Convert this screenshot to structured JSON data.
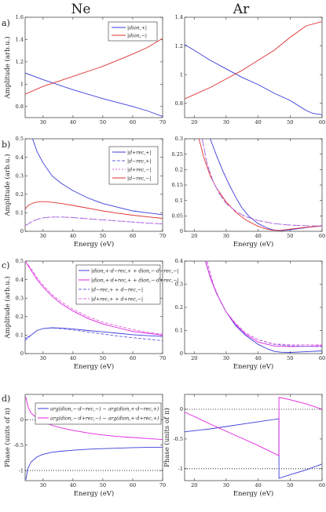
{
  "column_titles": [
    "Ne",
    "Ar"
  ],
  "panel_labels": [
    "a)",
    "b)",
    "c)",
    "d)"
  ],
  "colors": {
    "blue": "#3b3bdc",
    "red": "#e03030",
    "magenta": "#e020e0",
    "dashed_blue": "#6060e0",
    "dashed_magenta": "#e060e0"
  },
  "chart_data": [
    {
      "id": "a-ne",
      "type": "line",
      "xlabel": "",
      "ylabel": "Amplitude (arb.u.)",
      "xlim": [
        24,
        70
      ],
      "ylim": [
        0.7,
        1.6
      ],
      "xticks": [
        30,
        40,
        50,
        60,
        70
      ],
      "yticks": [
        0.8,
        1,
        1.2,
        1.4,
        1.6
      ],
      "ytick_labels": [
        "0.8",
        "1",
        "1.2",
        "1.4",
        "1.6"
      ],
      "legend": "top-right",
      "series": [
        {
          "name": "|dion,+|",
          "color": "#3b3bdc",
          "dash": "",
          "x": [
            24,
            30,
            40,
            50,
            60,
            65,
            70
          ],
          "y": [
            1.1,
            1.04,
            0.95,
            0.87,
            0.8,
            0.76,
            0.71
          ]
        },
        {
          "name": "|dion,−|",
          "color": "#e03030",
          "dash": "",
          "x": [
            24,
            30,
            40,
            50,
            60,
            65,
            70
          ],
          "y": [
            0.91,
            0.98,
            1.07,
            1.16,
            1.27,
            1.33,
            1.41
          ]
        }
      ]
    },
    {
      "id": "a-ar",
      "type": "line",
      "xlabel": "",
      "ylabel": "",
      "xlim": [
        17,
        60
      ],
      "ylim": [
        0.7,
        1.4
      ],
      "xticks": [
        20,
        30,
        40,
        50,
        60
      ],
      "yticks": [
        0.8,
        1,
        1.2,
        1.4
      ],
      "ytick_labels": [
        "0.8",
        "1",
        "1.2",
        "1.4"
      ],
      "series": [
        {
          "name": "",
          "color": "#3b3bdc",
          "dash": "",
          "x": [
            17,
            20,
            25,
            30,
            35,
            40,
            45,
            50,
            55,
            57,
            60
          ],
          "y": [
            1.21,
            1.17,
            1.1,
            1.04,
            0.98,
            0.93,
            0.87,
            0.82,
            0.75,
            0.73,
            0.72
          ]
        },
        {
          "name": "",
          "color": "#e03030",
          "dash": "",
          "x": [
            17,
            20,
            25,
            30,
            35,
            40,
            45,
            50,
            55,
            60
          ],
          "y": [
            0.83,
            0.86,
            0.91,
            0.97,
            1.03,
            1.1,
            1.17,
            1.26,
            1.34,
            1.37
          ]
        }
      ]
    },
    {
      "id": "b-ne",
      "type": "line",
      "xlabel": "Energy (eV)",
      "ylabel": "Amplitude (arb.u.)",
      "xlim": [
        24,
        70
      ],
      "ylim": [
        0,
        0.5
      ],
      "xticks": [
        30,
        40,
        50,
        60,
        70
      ],
      "yticks": [
        0,
        0.1,
        0.2,
        0.3,
        0.4,
        0.5
      ],
      "ytick_labels": [
        "0",
        "0.1",
        "0.2",
        "0.3",
        "0.4",
        "0.5"
      ],
      "legend": "top-right",
      "series": [
        {
          "name": "|d+rec,+|",
          "color": "#3b3bdc",
          "dash": "",
          "x": [
            26.5,
            28,
            30,
            33,
            36,
            40,
            45,
            50,
            55,
            60,
            65,
            70
          ],
          "y": [
            0.5,
            0.43,
            0.37,
            0.3,
            0.26,
            0.22,
            0.18,
            0.15,
            0.13,
            0.11,
            0.1,
            0.09
          ]
        },
        {
          "name": "|d−rec,+|",
          "color": "#6060e0",
          "dash": "4,2",
          "x": [
            24,
            26,
            28,
            30,
            33,
            36,
            40,
            45,
            50,
            55,
            60,
            65,
            70
          ],
          "y": [
            0.03,
            0.05,
            0.065,
            0.073,
            0.077,
            0.077,
            0.074,
            0.068,
            0.062,
            0.056,
            0.05,
            0.044,
            0.04
          ]
        },
        {
          "name": "|d+rec,−|",
          "color": "#e060e0",
          "dash": "2,2",
          "x": [
            24,
            26,
            28,
            30,
            33,
            36,
            40,
            45,
            50,
            55,
            60,
            65,
            70
          ],
          "y": [
            0.03,
            0.05,
            0.065,
            0.073,
            0.077,
            0.077,
            0.074,
            0.068,
            0.062,
            0.056,
            0.05,
            0.044,
            0.04
          ]
        },
        {
          "name": "|d−rec,−|",
          "color": "#e03030",
          "dash": "",
          "x": [
            24,
            25,
            27,
            29,
            31,
            34,
            37,
            40,
            45,
            50,
            55,
            60,
            65,
            70
          ],
          "y": [
            0.12,
            0.14,
            0.155,
            0.16,
            0.16,
            0.155,
            0.148,
            0.14,
            0.125,
            0.11,
            0.098,
            0.087,
            0.078,
            0.07
          ]
        }
      ]
    },
    {
      "id": "b-ar",
      "type": "line",
      "xlabel": "Energy (eV)",
      "ylabel": "",
      "xlim": [
        17,
        60
      ],
      "ylim": [
        0,
        0.3
      ],
      "xticks": [
        20,
        30,
        40,
        50,
        60
      ],
      "yticks": [
        0,
        0.05,
        0.1,
        0.15,
        0.2,
        0.25,
        0.3
      ],
      "ytick_labels": [
        "0",
        "0.05",
        "0.1",
        "0.15",
        "0.2",
        "0.25",
        "0.3"
      ],
      "series": [
        {
          "name": "",
          "color": "#3b3bdc",
          "dash": "",
          "x": [
            25,
            27,
            29,
            31,
            33,
            35,
            37,
            40,
            43,
            45,
            47,
            50,
            55,
            60
          ],
          "y": [
            0.3,
            0.245,
            0.195,
            0.15,
            0.11,
            0.075,
            0.05,
            0.025,
            0.01,
            0.004,
            0.002,
            0.005,
            0.012,
            0.018
          ]
        },
        {
          "name": "",
          "color": "#e03030",
          "dash": "",
          "x": [
            21.5,
            23,
            25,
            27,
            30,
            33,
            36,
            40,
            43,
            45,
            47,
            50,
            55,
            60
          ],
          "y": [
            0.3,
            0.24,
            0.18,
            0.14,
            0.095,
            0.062,
            0.038,
            0.016,
            0.006,
            0.003,
            0.003,
            0.007,
            0.013,
            0.017
          ]
        },
        {
          "name": "",
          "color": "#6060e0",
          "dash": "4,2",
          "x": [
            22.5,
            24,
            26,
            28,
            30,
            33,
            36,
            40,
            45,
            50,
            55,
            60
          ],
          "y": [
            0.3,
            0.22,
            0.16,
            0.12,
            0.09,
            0.065,
            0.048,
            0.035,
            0.025,
            0.02,
            0.018,
            0.017
          ]
        },
        {
          "name": "",
          "color": "#e060e0",
          "dash": "2,2",
          "x": [
            22.5,
            24,
            26,
            28,
            30,
            33,
            36,
            40,
            45,
            50,
            55,
            60
          ],
          "y": [
            0.3,
            0.22,
            0.16,
            0.12,
            0.09,
            0.065,
            0.048,
            0.035,
            0.025,
            0.02,
            0.018,
            0.017
          ]
        }
      ]
    },
    {
      "id": "c-ne",
      "type": "line",
      "xlabel": "Energy (eV)",
      "ylabel": "Amplitude (arb.u.)",
      "xlim": [
        24,
        70
      ],
      "ylim": [
        0,
        0.5
      ],
      "xticks": [
        30,
        40,
        50,
        60,
        70
      ],
      "yticks": [
        0,
        0.1,
        0.2,
        0.3,
        0.4,
        0.5
      ],
      "ytick_labels": [
        "0",
        "0.1",
        "0.2",
        "0.3",
        "0.4",
        "0.5"
      ],
      "legend": "top-right",
      "series": [
        {
          "name": "|dion,+·d−rec,+ + dion,−·d−rec,−|",
          "color": "#3b3bdc",
          "dash": "",
          "x": [
            24,
            26,
            28,
            30,
            33,
            36,
            40,
            45,
            50,
            55,
            60,
            65,
            70
          ],
          "y": [
            0.08,
            0.1,
            0.125,
            0.135,
            0.14,
            0.138,
            0.133,
            0.125,
            0.118,
            0.11,
            0.102,
            0.097,
            0.093
          ]
        },
        {
          "name": "|dion,+·d+rec,+ + dion,−·d+rec,−|",
          "color": "#e020e0",
          "dash": "",
          "x": [
            24,
            26,
            28,
            30,
            33,
            36,
            40,
            45,
            50,
            55,
            60,
            65,
            70
          ],
          "y": [
            0.5,
            0.45,
            0.4,
            0.36,
            0.31,
            0.27,
            0.23,
            0.19,
            0.16,
            0.14,
            0.12,
            0.11,
            0.1
          ]
        },
        {
          "name": "|d−rec,+ + d−rec,−|",
          "color": "#6060e0",
          "dash": "4,2",
          "x": [
            24,
            26,
            28,
            30,
            33,
            36,
            40,
            45,
            50,
            55,
            60,
            65,
            70
          ],
          "y": [
            0.07,
            0.1,
            0.125,
            0.135,
            0.138,
            0.135,
            0.128,
            0.117,
            0.106,
            0.095,
            0.086,
            0.078,
            0.07
          ]
        },
        {
          "name": "|d+rec,+ + d+rec,−|",
          "color": "#e060e0",
          "dash": "4,2",
          "x": [
            24,
            26,
            28,
            30,
            33,
            36,
            40,
            45,
            50,
            55,
            60,
            65,
            70
          ],
          "y": [
            0.5,
            0.46,
            0.41,
            0.37,
            0.32,
            0.28,
            0.24,
            0.2,
            0.17,
            0.15,
            0.13,
            0.115,
            0.105
          ]
        }
      ]
    },
    {
      "id": "c-ar",
      "type": "line",
      "xlabel": "Energy (eV)",
      "ylabel": "",
      "xlim": [
        17,
        60
      ],
      "ylim": [
        0,
        0.4
      ],
      "xticks": [
        20,
        30,
        40,
        50,
        60
      ],
      "yticks": [
        0,
        0.1,
        0.2,
        0.3,
        0.4
      ],
      "ytick_labels": [
        "0",
        "0.1",
        "0.2",
        "0.3",
        "0.4"
      ],
      "series": [
        {
          "name": "",
          "color": "#3b3bdc",
          "dash": "",
          "x": [
            23.5,
            25,
            27,
            30,
            33,
            36,
            40,
            43,
            45,
            47,
            50,
            55,
            60
          ],
          "y": [
            0.4,
            0.33,
            0.26,
            0.18,
            0.12,
            0.08,
            0.04,
            0.02,
            0.01,
            0.006,
            0.005,
            0.008,
            0.012
          ]
        },
        {
          "name": "",
          "color": "#e020e0",
          "dash": "",
          "x": [
            23.5,
            25,
            27,
            30,
            33,
            36,
            40,
            45,
            50,
            55,
            60
          ],
          "y": [
            0.4,
            0.33,
            0.26,
            0.18,
            0.125,
            0.085,
            0.05,
            0.033,
            0.03,
            0.032,
            0.034
          ]
        },
        {
          "name": "",
          "color": "#6060e0",
          "dash": "4,2",
          "x": [
            24,
            26,
            28,
            30,
            33,
            36,
            40,
            45,
            50,
            55,
            60
          ],
          "y": [
            0.4,
            0.3,
            0.23,
            0.18,
            0.13,
            0.09,
            0.06,
            0.04,
            0.034,
            0.032,
            0.03
          ]
        },
        {
          "name": "",
          "color": "#e060e0",
          "dash": "4,2",
          "x": [
            24,
            26,
            28,
            30,
            33,
            36,
            40,
            45,
            50,
            55,
            60
          ],
          "y": [
            0.4,
            0.3,
            0.23,
            0.18,
            0.13,
            0.09,
            0.06,
            0.042,
            0.038,
            0.038,
            0.038
          ]
        }
      ]
    },
    {
      "id": "d-ne",
      "type": "line",
      "xlabel": "Energy (eV)",
      "ylabel": "Phase (units of π)",
      "xlim": [
        24,
        70
      ],
      "ylim": [
        -1.2,
        0.5
      ],
      "xticks": [
        30,
        40,
        50,
        60,
        70
      ],
      "yticks": [
        -1,
        -0.5,
        0
      ],
      "ytick_labels": [
        "-1",
        "-0.5",
        "0"
      ],
      "hlines": [
        0,
        -1
      ],
      "legend": "top-right",
      "series": [
        {
          "name": "arg(dion,−·d−rec,−) − arg(dion,+·d−rec,+)",
          "color": "#3b3bdc",
          "dash": "",
          "x": [
            24.2,
            25,
            26,
            28,
            30,
            33,
            36,
            40,
            45,
            50,
            55,
            60,
            65,
            70
          ],
          "y": [
            -1.18,
            -0.95,
            -0.83,
            -0.73,
            -0.68,
            -0.64,
            -0.62,
            -0.6,
            -0.58,
            -0.57,
            -0.56,
            -0.55,
            -0.545,
            -0.54
          ]
        },
        {
          "name": "arg(dion,−·d+rec,−) − arg(dion,+·d+rec,+)",
          "color": "#e020e0",
          "dash": "",
          "x": [
            24.2,
            25,
            26,
            28,
            30,
            33,
            36,
            40,
            45,
            50,
            55,
            60,
            65,
            70
          ],
          "y": [
            0.45,
            0.25,
            0.13,
            0.03,
            -0.04,
            -0.11,
            -0.16,
            -0.21,
            -0.26,
            -0.3,
            -0.33,
            -0.35,
            -0.37,
            -0.39
          ]
        }
      ]
    },
    {
      "id": "d-ar",
      "type": "line",
      "xlabel": "Energy (eV)",
      "ylabel": "Phase (units of π)",
      "xlim": [
        17,
        60
      ],
      "ylim": [
        -1.2,
        0.25
      ],
      "xticks": [
        20,
        30,
        40,
        50,
        60
      ],
      "yticks": [
        -1,
        -0.5,
        0
      ],
      "ytick_labels": [
        "-1",
        "-0.5",
        "0"
      ],
      "hlines": [
        0,
        -1
      ],
      "series": [
        {
          "name": "",
          "color": "#3b3bdc",
          "dash": "",
          "x": [
            17,
            20,
            25,
            30,
            35,
            40,
            46.5,
            46.5,
            50,
            55,
            60
          ],
          "y": [
            -0.38,
            -0.36,
            -0.33,
            -0.29,
            -0.25,
            -0.21,
            -0.16,
            -1.16,
            -1.1,
            -1.02,
            -0.92
          ]
        },
        {
          "name": "",
          "color": "#e020e0",
          "dash": "",
          "x": [
            17,
            20,
            25,
            30,
            35,
            40,
            46.5,
            46.5,
            50,
            55,
            60
          ],
          "y": [
            -0.05,
            -0.12,
            -0.25,
            -0.37,
            -0.49,
            -0.61,
            -0.78,
            0.2,
            0.16,
            0.09,
            0.0
          ]
        }
      ]
    }
  ]
}
